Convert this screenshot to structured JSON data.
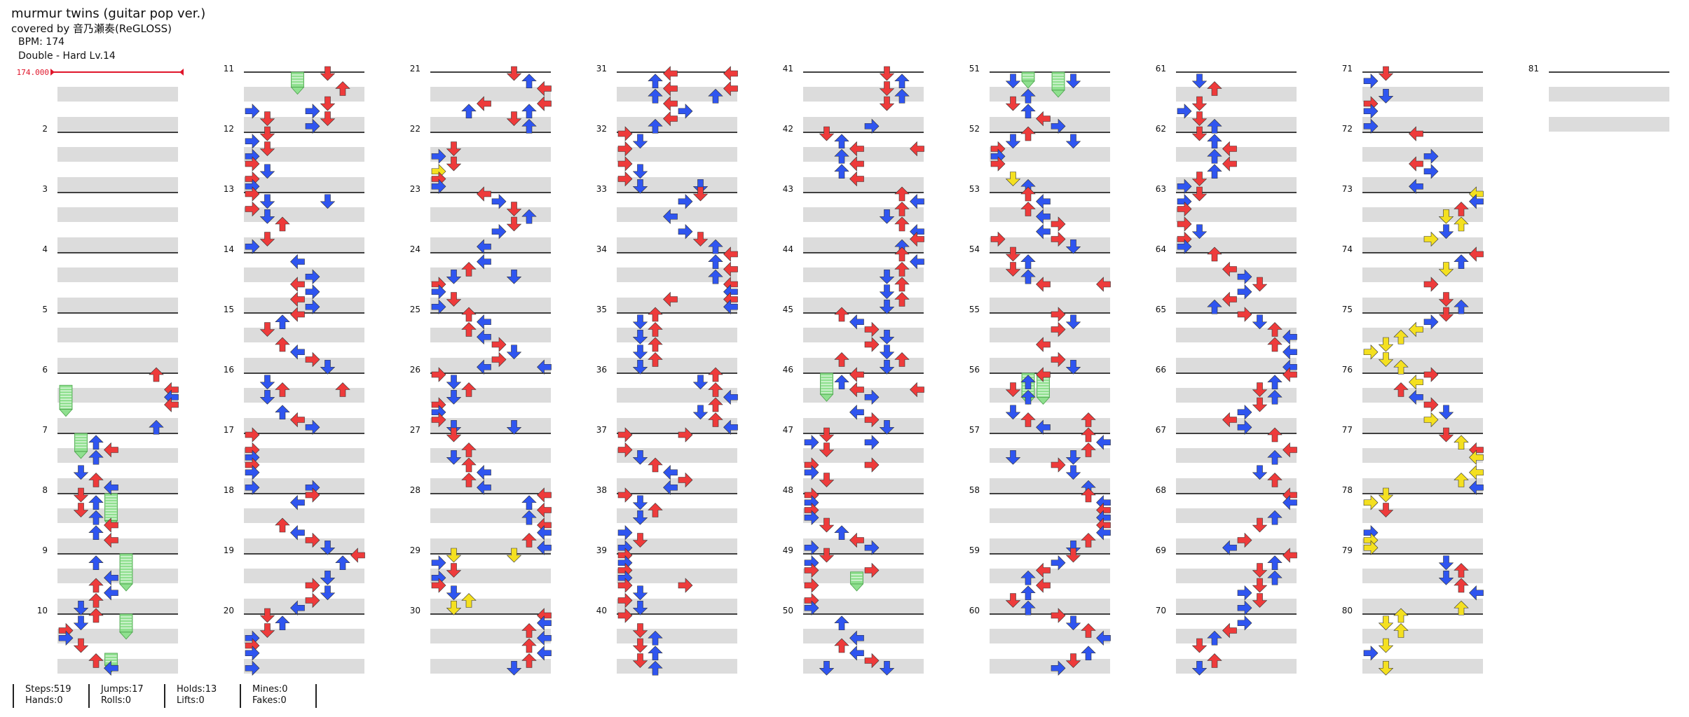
{
  "song": {
    "title": "murmur twins (guitar pop ver.)",
    "artist": "covered by 音乃瀬奏(ReGLOSS)",
    "bpm_line": "BPM: 174",
    "difficulty_line": "Double - Hard  Lv.14"
  },
  "bpm_marker": "174.000",
  "measure_numbers": [
    "",
    "2",
    "3",
    "4",
    "5",
    "6",
    "7",
    "8",
    "9",
    "10",
    "11",
    "12",
    "13",
    "14",
    "15",
    "16",
    "17",
    "18",
    "19",
    "20",
    "21",
    "22",
    "23",
    "24",
    "25",
    "26",
    "27",
    "28",
    "29",
    "30",
    "31",
    "32",
    "33",
    "34",
    "35",
    "36",
    "37",
    "38",
    "39",
    "40",
    "41",
    "42",
    "43",
    "44",
    "45",
    "46",
    "47",
    "48",
    "49",
    "50",
    "51",
    "52",
    "53",
    "54",
    "55",
    "56",
    "57",
    "58",
    "59",
    "60",
    "61",
    "62",
    "63",
    "64",
    "65",
    "66",
    "67",
    "68",
    "69",
    "70",
    "71",
    "72",
    "73",
    "74",
    "75",
    "76",
    "77",
    "78",
    "79",
    "80",
    "81"
  ],
  "stats": {
    "groups": [
      {
        "line1": "Steps:519",
        "line2": "Hands:0"
      },
      {
        "line1": "Jumps:17",
        "line2": "Rolls:0"
      },
      {
        "line1": "Holds:13",
        "line2": "Lifts:0"
      },
      {
        "line1": "Mines:0",
        "line2": "Fakes:0"
      }
    ]
  },
  "colors": {
    "red_note": "#ee3b3b",
    "blue_note": "#2f55f0",
    "yellow_note": "#f4e020",
    "hold_body": "#8fe08f",
    "band_gray": "#dcdcdc",
    "bpm_marker": "#e0162b",
    "measure_line": "#000000"
  },
  "note_icon_names": [
    "left-arrow-note-icon",
    "down-arrow-note-icon",
    "up-arrow-note-icon",
    "right-arrow-note-icon",
    "freeze-hold-icon"
  ]
}
